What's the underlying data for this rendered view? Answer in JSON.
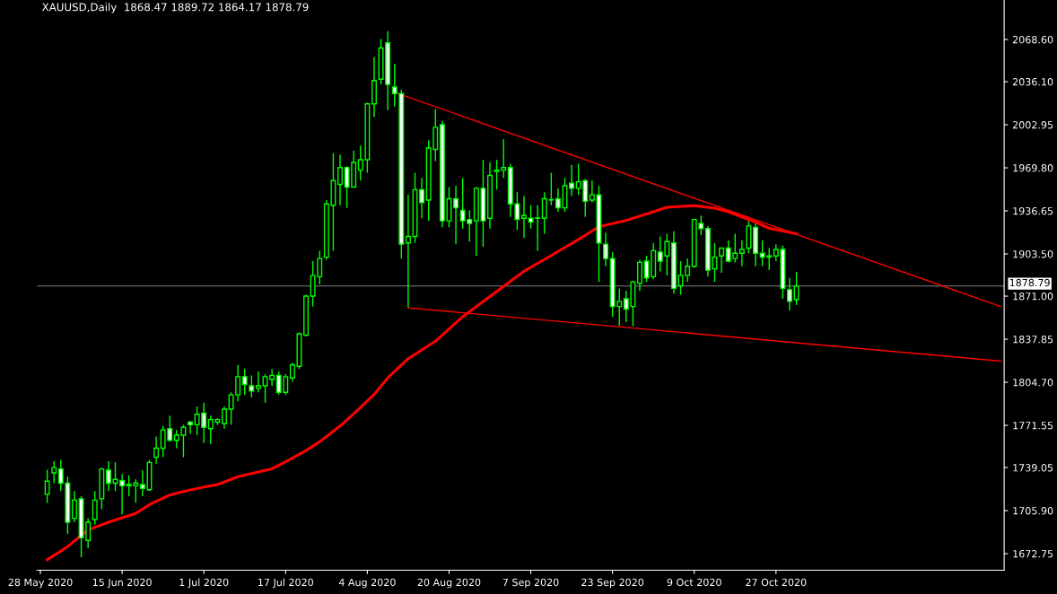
{
  "chart_data": {
    "type": "candlestick",
    "title": "XAUUSD,Daily  1868.47 1889.72 1864.17 1878.79",
    "categories": [
      "28 May 2020",
      null,
      null,
      null,
      null,
      null,
      null,
      null,
      null,
      null,
      null,
      null,
      "15 Jun 2020",
      null,
      null,
      null,
      null,
      null,
      null,
      null,
      null,
      null,
      null,
      null,
      "1 Jul 2020",
      null,
      null,
      null,
      null,
      null,
      null,
      null,
      null,
      null,
      null,
      null,
      "17 Jul 2020",
      null,
      null,
      null,
      null,
      null,
      null,
      null,
      null,
      null,
      null,
      null,
      "4 Aug 2020",
      null,
      null,
      null,
      null,
      null,
      null,
      null,
      null,
      null,
      null,
      null,
      "20 Aug 2020",
      null,
      null,
      null,
      null,
      null,
      null,
      null,
      null,
      null,
      null,
      null,
      "7 Sep 2020",
      null,
      null,
      null,
      null,
      null,
      null,
      null,
      null,
      null,
      null,
      null,
      "23 Sep 2020",
      null,
      null,
      null,
      null,
      null,
      null,
      null,
      null,
      null,
      null,
      null,
      "9 Oct 2020",
      null,
      null,
      null,
      null,
      null,
      null,
      null,
      null,
      null,
      null,
      null,
      "27 Oct 2020",
      null,
      null,
      null,
      null,
      null,
      null,
      null,
      null,
      null,
      null,
      null,
      null,
      null,
      null,
      null,
      null,
      null,
      null,
      null,
      null,
      null,
      null,
      null,
      null,
      null,
      null,
      null,
      null,
      null,
      null,
      null,
      null,
      null
    ],
    "ylim": [
      1660,
      2099
    ],
    "yticks": [
      {
        "value": 1672.75,
        "label": "1672.75"
      },
      {
        "value": 1705.9,
        "label": "1705.90"
      },
      {
        "value": 1739.05,
        "label": "1739.05"
      },
      {
        "value": 1771.55,
        "label": "1771.55"
      },
      {
        "value": 1804.7,
        "label": "1804.70"
      },
      {
        "value": 1837.85,
        "label": "1837.85"
      },
      {
        "value": 1871.0,
        "label": "1871.00"
      },
      {
        "value": 1903.5,
        "label": "1903.50"
      },
      {
        "value": 1936.65,
        "label": "1936.65"
      },
      {
        "value": 1969.8,
        "label": "1969.80"
      },
      {
        "value": 2002.95,
        "label": "2002.95"
      },
      {
        "value": 2036.1,
        "label": "2036.10"
      },
      {
        "value": 2068.6,
        "label": "2068.60"
      }
    ],
    "ref_lines": [
      {
        "axis": "y",
        "value": 1878.79,
        "label": "1878.79",
        "color": "#808080"
      }
    ],
    "series": [
      {
        "color": "#00ff00",
        "ohlc": [
          null,
          [
            1718.5,
            1737.4,
            1711.8,
            1728.6
          ],
          [
            1735,
            1744,
            1727,
            1739
          ],
          [
            1738,
            1745,
            1721,
            1727
          ],
          [
            1727,
            1732,
            1688,
            1697
          ],
          [
            1700,
            1721,
            1697,
            1714
          ],
          [
            1715,
            1717,
            1670,
            1685
          ],
          [
            1683,
            1700,
            1677,
            1697
          ],
          [
            1699,
            1721,
            1695,
            1714
          ],
          [
            1715,
            1739,
            1707,
            1738
          ],
          [
            1737,
            1744,
            1721,
            1727
          ],
          [
            1727,
            1743,
            1721,
            1730
          ],
          [
            1729,
            1734,
            1703,
            1725
          ],
          [
            1725,
            1733,
            1717,
            1726
          ],
          [
            1725,
            1730,
            1712,
            1727
          ],
          [
            1726,
            1737,
            1717,
            1723
          ],
          [
            1722,
            1745,
            1721,
            1743
          ],
          [
            1747,
            1763,
            1742,
            1754
          ],
          [
            1754,
            1771,
            1747,
            1768
          ],
          [
            1769,
            1779,
            1759,
            1760
          ],
          [
            1760,
            1768,
            1754,
            1764
          ],
          [
            1764,
            1772,
            1747,
            1770
          ],
          [
            1774,
            1775,
            1765,
            1772
          ],
          [
            1772,
            1786,
            1764,
            1780
          ],
          [
            1781,
            1789,
            1758,
            1770
          ],
          [
            1769,
            1779,
            1757,
            1776
          ],
          [
            1774,
            1777,
            1772,
            1776
          ],
          [
            1773,
            1786,
            1769,
            1784
          ],
          [
            1784,
            1797,
            1772,
            1795
          ],
          [
            1795,
            1818,
            1790,
            1809
          ],
          [
            1809,
            1815,
            1795,
            1803
          ],
          [
            1802,
            1810,
            1793,
            1798
          ],
          [
            1800,
            1813,
            1797,
            1802
          ],
          [
            1802,
            1811,
            1789,
            1809
          ],
          [
            1807,
            1815,
            1802,
            1810
          ],
          [
            1810,
            1813,
            1795,
            1797
          ],
          [
            1797,
            1811,
            1795,
            1809
          ],
          [
            1808,
            1820,
            1805,
            1818
          ],
          [
            1817,
            1843,
            1815,
            1842
          ],
          [
            1841,
            1872,
            1840,
            1871
          ],
          [
            1871,
            1898,
            1863,
            1887
          ],
          [
            1886,
            1906,
            1880,
            1900
          ],
          [
            1901,
            1945,
            1899,
            1942
          ],
          [
            1941,
            1981,
            1906,
            1960
          ],
          [
            1957,
            1980,
            1941,
            1970
          ],
          [
            1970,
            1971,
            1939,
            1955
          ],
          [
            1955,
            1983,
            1955,
            1974
          ],
          [
            1968,
            1987,
            1960,
            1976
          ],
          [
            1976,
            2020,
            1966,
            2019
          ],
          [
            2019,
            2055,
            2009,
            2037
          ],
          [
            2038,
            2069,
            2034,
            2062
          ],
          [
            2066,
            2075,
            2014,
            2034
          ],
          [
            2032,
            2050,
            2017,
            2027
          ],
          [
            2027,
            2030,
            1900,
            1911
          ],
          [
            1912,
            1949,
            1862,
            1917
          ],
          [
            1917,
            1966,
            1912,
            1953
          ],
          [
            1953,
            1962,
            1931,
            1943
          ],
          [
            1945,
            1991,
            1929,
            1985
          ],
          [
            1984,
            2015,
            1975,
            2001
          ],
          [
            2003,
            2006,
            1924,
            1929
          ],
          [
            1929,
            1955,
            1924,
            1946
          ],
          [
            1946,
            1956,
            1911,
            1939
          ],
          [
            1937,
            1962,
            1923,
            1929
          ],
          [
            1930,
            1937,
            1913,
            1927
          ],
          [
            1929,
            1955,
            1902,
            1954
          ],
          [
            1954,
            1976,
            1909,
            1929
          ],
          [
            1931,
            1974,
            1923,
            1964
          ],
          [
            1967,
            1976,
            1953,
            1968
          ],
          [
            1968,
            1992,
            1962,
            1970
          ],
          [
            1970,
            1973,
            1932,
            1942
          ],
          [
            1942,
            1951,
            1922,
            1930
          ],
          [
            1931,
            1948,
            1916,
            1933
          ],
          [
            1931,
            1941,
            1923,
            1928
          ],
          [
            1931,
            1941,
            1906,
            1931
          ],
          [
            1931,
            1951,
            1919,
            1946
          ],
          [
            1945,
            1966,
            1941,
            1945
          ],
          [
            1946,
            1954,
            1936,
            1939
          ],
          [
            1939,
            1962,
            1936,
            1956
          ],
          [
            1958,
            1972,
            1948,
            1954
          ],
          [
            1954,
            1973,
            1949,
            1959
          ],
          [
            1960,
            1961,
            1932,
            1944
          ],
          [
            1945,
            1960,
            1943,
            1949
          ],
          [
            1949,
            1956,
            1882,
            1912
          ],
          [
            1911,
            1920,
            1894,
            1900
          ],
          [
            1900,
            1905,
            1855,
            1863
          ],
          [
            1863,
            1877,
            1848,
            1867
          ],
          [
            1869,
            1875,
            1851,
            1861
          ],
          [
            1863,
            1883,
            1848,
            1882
          ],
          [
            1881,
            1899,
            1875,
            1897
          ],
          [
            1898,
            1902,
            1882,
            1885
          ],
          [
            1886,
            1912,
            1884,
            1906
          ],
          [
            1905,
            1917,
            1890,
            1898
          ],
          [
            1902,
            1919,
            1887,
            1913
          ],
          [
            1912,
            1921,
            1873,
            1877
          ],
          [
            1879,
            1898,
            1872,
            1887
          ],
          [
            1887,
            1900,
            1882,
            1894
          ],
          [
            1894,
            1930,
            1893,
            1930
          ],
          [
            1927,
            1933,
            1918,
            1923
          ],
          [
            1923,
            1925,
            1886,
            1891
          ],
          [
            1892,
            1912,
            1882,
            1901
          ],
          [
            1902,
            1908,
            1889,
            1908
          ],
          [
            1908,
            1914,
            1897,
            1898
          ],
          [
            1900,
            1919,
            1897,
            1904
          ],
          [
            1904,
            1914,
            1894,
            1907
          ],
          [
            1908,
            1929,
            1904,
            1925
          ],
          [
            1924,
            1927,
            1894,
            1904
          ],
          [
            1904,
            1914,
            1894,
            1901
          ],
          [
            1901,
            1908,
            1891,
            1902
          ],
          [
            1902,
            1911,
            1898,
            1907
          ],
          [
            1907,
            1910,
            1869,
            1877
          ],
          [
            1876,
            1885,
            1860,
            1867
          ],
          [
            1868.47,
            1889.72,
            1864.17,
            1878.79
          ],
          null,
          null,
          null,
          null,
          null,
          null,
          null,
          null,
          null,
          null,
          null,
          null,
          null,
          null,
          null,
          null,
          null,
          null,
          null,
          null,
          null,
          null,
          null,
          null,
          null,
          null,
          null,
          null,
          null,
          null
        ]
      },
      {
        "type": "line",
        "color": "#ff0000",
        "values": [
          null,
          1668.1,
          null,
          null,
          1678.2,
          null,
          1686.9,
          1691.0,
          null,
          null,
          1697.0,
          null,
          1700.4,
          null,
          1703.7,
          null,
          1710.5,
          null,
          null,
          1717.9,
          null,
          1720.6,
          null,
          null,
          1724.0,
          null,
          1726.0,
          null,
          null,
          1732.0,
          null,
          null,
          null,
          null,
          1738.1,
          null,
          1743.5,
          null,
          null,
          1752.2,
          null,
          1758.9,
          null,
          null,
          1771.0,
          null,
          1780.5,
          null,
          null,
          1795.3,
          null,
          1808.1,
          null,
          null,
          1822.9,
          null,
          null,
          null,
          1836.3,
          null,
          null,
          null,
          1855.2,
          null,
          null,
          null,
          null,
          null,
          null,
          null,
          null,
          1890.2,
          null,
          null,
          null,
          1902.3,
          null,
          null,
          null,
          null,
          1917.8,
          null,
          1924.5,
          null,
          null,
          null,
          1929.3,
          null,
          null,
          null,
          1936.0,
          null,
          1939.4,
          null,
          null,
          null,
          1940.7,
          null,
          null,
          1938.7,
          null,
          1936.0,
          null,
          null,
          null,
          1927.9,
          null,
          1923.2,
          null,
          null,
          null,
          1919.1,
          null,
          null,
          null,
          null,
          null,
          null,
          null,
          null,
          null,
          null,
          null,
          null,
          null,
          null,
          null,
          null,
          null,
          null,
          null,
          null,
          null,
          null,
          null,
          null,
          null,
          null,
          null,
          null,
          null,
          null
        ]
      },
      {
        "type": "line",
        "color": "#ff0000",
        "values": [
          null,
          null,
          null,
          null,
          null,
          null,
          null,
          null,
          null,
          null,
          null,
          null,
          null,
          null,
          null,
          null,
          null,
          null,
          null,
          null,
          null,
          null,
          null,
          null,
          null,
          null,
          null,
          null,
          null,
          null,
          null,
          null,
          null,
          null,
          null,
          null,
          null,
          null,
          null,
          null,
          null,
          null,
          null,
          null,
          null,
          null,
          null,
          null,
          null,
          null,
          null,
          null,
          2028,
          null,
          null,
          null,
          null,
          null,
          null,
          null,
          null,
          null,
          null,
          null,
          null,
          null,
          null,
          null,
          null,
          null,
          null,
          null,
          null,
          null,
          null,
          null,
          null,
          null,
          null,
          null,
          null,
          null,
          null,
          null,
          null,
          null,
          null,
          null,
          null,
          null,
          null,
          null,
          null,
          null,
          null,
          null,
          null,
          null,
          null,
          null,
          null,
          null,
          null,
          null,
          null,
          null,
          null,
          null,
          null,
          null,
          null,
          null,
          null,
          null,
          null,
          null,
          null,
          null,
          null,
          null,
          null,
          null,
          null,
          null,
          null,
          null,
          null,
          null,
          null,
          null,
          null,
          null,
          null,
          null,
          null,
          null,
          null,
          null,
          null,
          null,
          null,
          1863
        ]
      },
      {
        "type": "line",
        "color": "#ff0000",
        "values": [
          null,
          null,
          null,
          null,
          null,
          null,
          null,
          null,
          null,
          null,
          null,
          null,
          null,
          null,
          null,
          null,
          null,
          null,
          null,
          null,
          null,
          null,
          null,
          null,
          null,
          null,
          null,
          null,
          null,
          null,
          null,
          null,
          null,
          null,
          null,
          null,
          null,
          null,
          null,
          null,
          null,
          null,
          null,
          null,
          null,
          null,
          null,
          null,
          null,
          null,
          null,
          null,
          null,
          null,
          1862,
          null,
          null,
          null,
          null,
          null,
          null,
          null,
          null,
          null,
          null,
          null,
          null,
          null,
          null,
          null,
          null,
          null,
          null,
          null,
          null,
          null,
          null,
          null,
          null,
          null,
          null,
          null,
          null,
          null,
          null,
          null,
          null,
          null,
          null,
          null,
          null,
          null,
          null,
          null,
          null,
          null,
          null,
          null,
          null,
          null,
          null,
          null,
          null,
          null,
          null,
          null,
          null,
          null,
          null,
          null,
          null,
          null,
          null,
          null,
          null,
          null,
          null,
          null,
          null,
          null,
          null,
          null,
          null,
          null,
          null,
          null,
          null,
          null,
          null,
          null,
          null,
          null,
          null,
          null,
          null,
          null,
          null,
          null,
          null,
          null,
          null,
          1821
        ]
      }
    ],
    "grid": false
  }
}
